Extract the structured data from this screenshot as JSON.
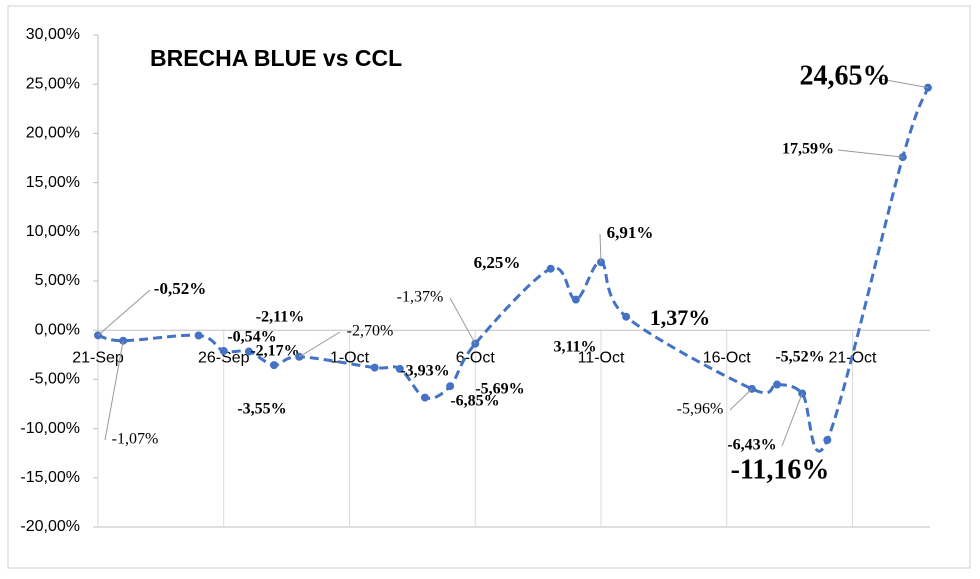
{
  "chart_data": {
    "type": "line",
    "title": "BRECHA BLUE vs CCL",
    "x": [
      "21-Sep",
      "22-Sep",
      "25-Sep",
      "26-Sep",
      "27-Sep",
      "28-Sep",
      "29-Sep",
      "2-Oct",
      "3-Oct",
      "4-Oct",
      "5-Oct",
      "6-Oct",
      "9-Oct",
      "10-Oct",
      "11-Oct",
      "12-Oct",
      "17-Oct",
      "18-Oct",
      "19-Oct",
      "20-Oct",
      "23-Oct",
      "24-Oct"
    ],
    "series": [
      {
        "color": "#4472c4",
        "values": [
          -0.52,
          -1.07,
          -0.54,
          -2.11,
          -2.17,
          -3.55,
          -2.7,
          -3.8,
          -3.93,
          -6.85,
          -5.69,
          -1.37,
          6.25,
          3.11,
          6.91,
          1.37,
          -5.96,
          -5.52,
          -6.43,
          -11.16,
          17.59,
          24.65
        ],
        "value_labels": [
          "-0,52%",
          "-1,07%",
          "-0,54%",
          "-2,11%",
          "-2,17%",
          "-3,55%",
          "-2,70%",
          null,
          "-3,93%",
          "-6,85%",
          "-5,69%",
          "-1,37%",
          "6,25%",
          "3,11%",
          "6,91%",
          "1,37%",
          "-5,96%",
          "-5,52%",
          "-6,43%",
          "-11,16%",
          "17,59%",
          "24,65%"
        ]
      }
    ],
    "xticks": [
      "21-Sep",
      "26-Sep",
      "1-Oct",
      "6-Oct",
      "11-Oct",
      "16-Oct",
      "21-Oct"
    ],
    "ylim": [
      -20,
      30
    ],
    "yticks": [
      {
        "value": -20,
        "label": "-20,00%"
      },
      {
        "value": -15,
        "label": "-15,00%"
      },
      {
        "value": -10,
        "label": "-10,00%"
      },
      {
        "value": -5,
        "label": "-5,00%"
      },
      {
        "value": 0,
        "label": "0,00%"
      },
      {
        "value": 5,
        "label": "5,00%"
      },
      {
        "value": 10,
        "label": "10,00%"
      },
      {
        "value": 15,
        "label": "15,00%"
      },
      {
        "value": 20,
        "label": "20,00%"
      },
      {
        "value": 25,
        "label": "25,00%"
      },
      {
        "value": 30,
        "label": "30,00%"
      }
    ],
    "grid": false
  }
}
